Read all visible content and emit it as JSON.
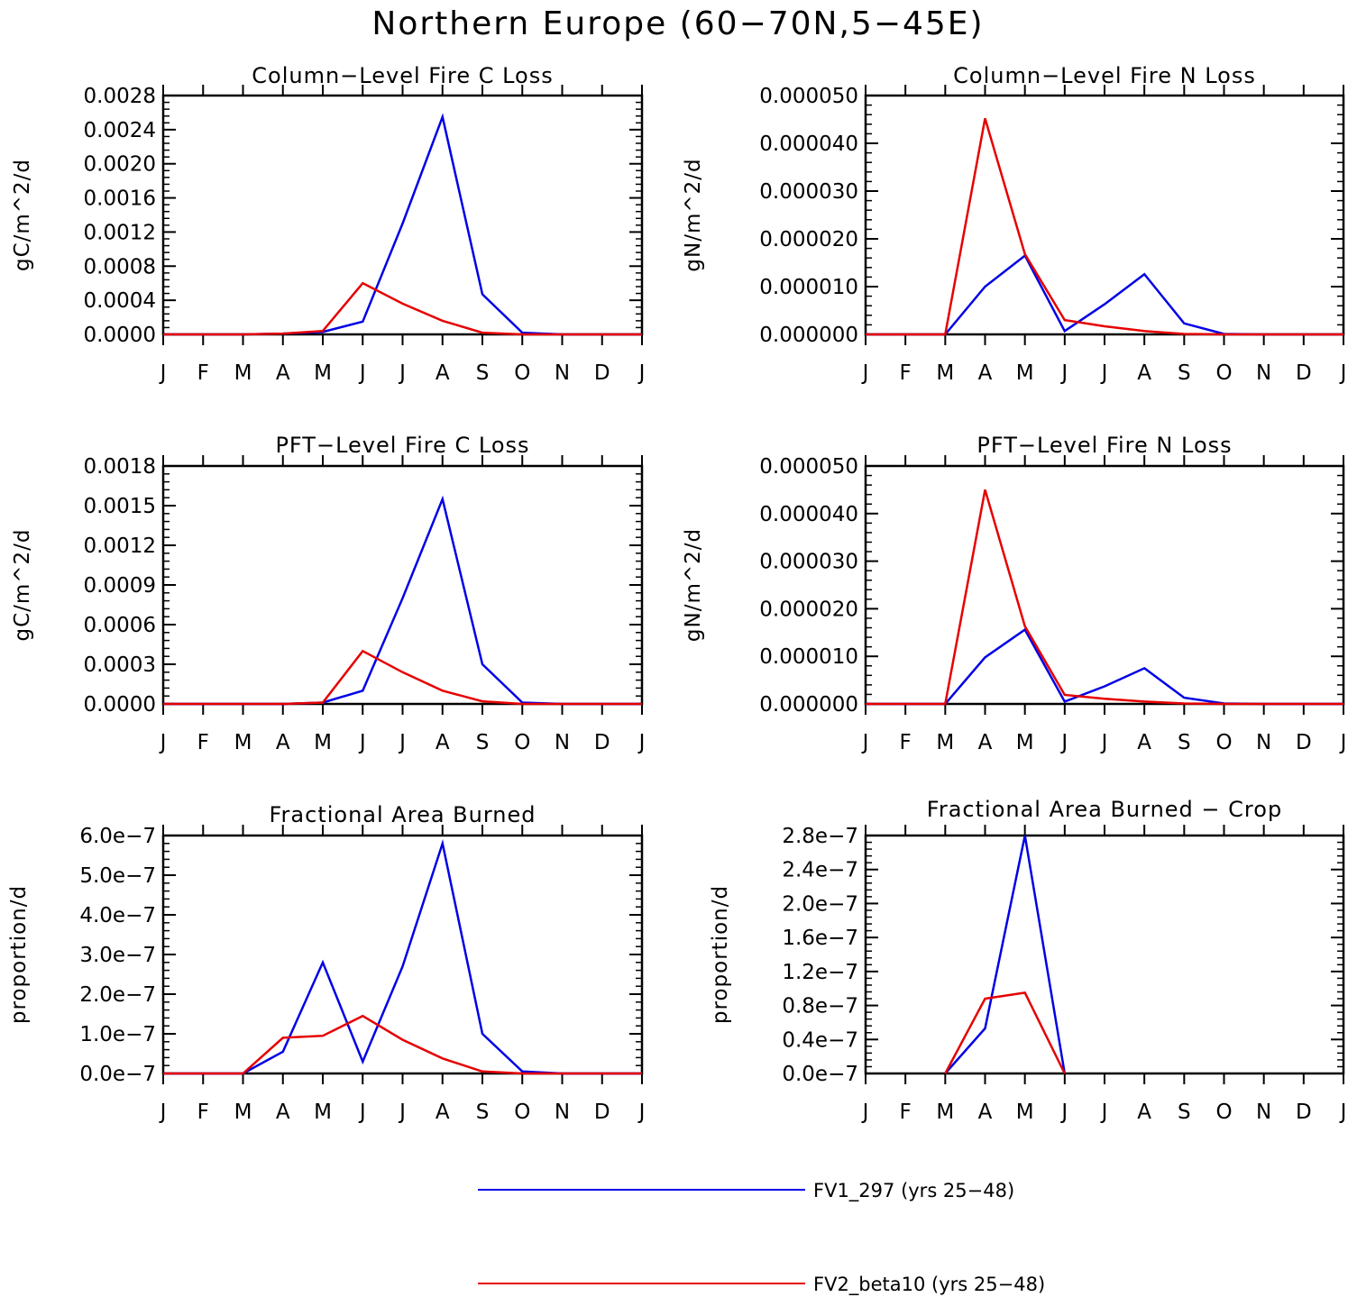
{
  "title": "Northern Europe (60−70N,5−45E)",
  "colors": {
    "series1": "#0000e6",
    "series2": "#e60000"
  },
  "legend": [
    {
      "label": "FV1_297 (yrs 25−48)"
    },
    {
      "label": "FV2_beta10 (yrs 25−48)"
    }
  ],
  "chart_data": [
    {
      "type": "line",
      "title": "Column−Level Fire C Loss",
      "ylabel": "gC/m^2/d",
      "xlabel": "",
      "categories": [
        "J",
        "F",
        "M",
        "A",
        "M",
        "J",
        "J",
        "A",
        "S",
        "O",
        "N",
        "D",
        "J"
      ],
      "ylim": [
        0,
        0.0028
      ],
      "yticks": [
        "0.0000",
        "0.0004",
        "0.0008",
        "0.0012",
        "0.0016",
        "0.0020",
        "0.0024",
        "0.0028"
      ],
      "series": [
        {
          "name": "FV1_297 (yrs 25−48)",
          "values": [
            0,
            0,
            0,
            1e-05,
            3e-05,
            0.00015,
            0.0013,
            0.00255,
            0.00047,
            2e-05,
            0,
            0,
            0
          ]
        },
        {
          "name": "FV2_beta10 (yrs 25−48)",
          "values": [
            0,
            0,
            0,
            1e-05,
            4e-05,
            0.0006,
            0.00036,
            0.00016,
            2e-05,
            0,
            0,
            0,
            0
          ]
        }
      ]
    },
    {
      "type": "line",
      "title": "Column−Level Fire N Loss",
      "ylabel": "gN/m^2/d",
      "xlabel": "",
      "categories": [
        "J",
        "F",
        "M",
        "A",
        "M",
        "J",
        "J",
        "A",
        "S",
        "O",
        "N",
        "D",
        "J"
      ],
      "ylim": [
        0,
        5e-05
      ],
      "yticks": [
        "0.000000",
        "0.000010",
        "0.000020",
        "0.000030",
        "0.000040",
        "0.000050"
      ],
      "series": [
        {
          "name": "FV1_297 (yrs 25−48)",
          "values": [
            0,
            0,
            0,
            1e-05,
            1.65e-05,
            7e-07,
            6.3e-06,
            1.26e-05,
            2.3e-06,
            1e-07,
            0,
            0,
            0
          ]
        },
        {
          "name": "FV2_beta10 (yrs 25−48)",
          "values": [
            0,
            0,
            0,
            4.52e-05,
            1.68e-05,
            3e-06,
            1.7e-06,
            7e-07,
            1e-07,
            0,
            0,
            0,
            0
          ]
        }
      ]
    },
    {
      "type": "line",
      "title": "PFT−Level Fire C Loss",
      "ylabel": "gC/m^2/d",
      "xlabel": "",
      "categories": [
        "J",
        "F",
        "M",
        "A",
        "M",
        "J",
        "J",
        "A",
        "S",
        "O",
        "N",
        "D",
        "J"
      ],
      "ylim": [
        0,
        0.0018
      ],
      "yticks": [
        "0.0000",
        "0.0003",
        "0.0006",
        "0.0009",
        "0.0012",
        "0.0015",
        "0.0018"
      ],
      "series": [
        {
          "name": "FV1_297 (yrs 25−48)",
          "values": [
            0,
            0,
            0,
            0,
            1e-05,
            0.0001,
            0.0008,
            0.00155,
            0.0003,
            1e-05,
            0,
            0,
            0
          ]
        },
        {
          "name": "FV2_beta10 (yrs 25−48)",
          "values": [
            0,
            0,
            0,
            0,
            1e-05,
            0.0004,
            0.00024,
            0.0001,
            2e-05,
            0,
            0,
            0,
            0
          ]
        }
      ]
    },
    {
      "type": "line",
      "title": "PFT−Level Fire N Loss",
      "ylabel": "gN/m^2/d",
      "xlabel": "",
      "categories": [
        "J",
        "F",
        "M",
        "A",
        "M",
        "J",
        "J",
        "A",
        "S",
        "O",
        "N",
        "D",
        "J"
      ],
      "ylim": [
        0,
        5e-05
      ],
      "yticks": [
        "0.000000",
        "0.000010",
        "0.000020",
        "0.000030",
        "0.000040",
        "0.000050"
      ],
      "series": [
        {
          "name": "FV1_297 (yrs 25−48)",
          "values": [
            0,
            0,
            0,
            9.8e-06,
            1.56e-05,
            5e-07,
            3.7e-06,
            7.5e-06,
            1.3e-06,
            1e-07,
            0,
            0,
            0
          ]
        },
        {
          "name": "FV2_beta10 (yrs 25−48)",
          "values": [
            0,
            0,
            0,
            4.5e-05,
            1.63e-05,
            1.9e-06,
            1.1e-06,
            5e-07,
            1e-07,
            0,
            0,
            0,
            0
          ]
        }
      ]
    },
    {
      "type": "line",
      "title": "Fractional Area Burned",
      "ylabel": "proportion/d",
      "xlabel": "",
      "categories": [
        "J",
        "F",
        "M",
        "A",
        "M",
        "J",
        "J",
        "A",
        "S",
        "O",
        "N",
        "D",
        "J"
      ],
      "ylim": [
        0,
        6e-07
      ],
      "yticks": [
        "0.0e−7",
        "1.0e−7",
        "2.0e−7",
        "3.0e−7",
        "4.0e−7",
        "5.0e−7",
        "6.0e−7"
      ],
      "series": [
        {
          "name": "FV1_297 (yrs 25−48)",
          "values": [
            0,
            0,
            0,
            5.5e-08,
            2.8e-07,
            3e-08,
            2.7e-07,
            5.8e-07,
            1e-07,
            5e-09,
            0,
            0,
            0
          ]
        },
        {
          "name": "FV2_beta10 (yrs 25−48)",
          "values": [
            0,
            0,
            0,
            9e-08,
            9.5e-08,
            1.45e-07,
            8.5e-08,
            3.8e-08,
            5e-09,
            0,
            0,
            0,
            0
          ]
        }
      ]
    },
    {
      "type": "line",
      "title": "Fractional Area Burned − Crop",
      "ylabel": "proportion/d",
      "xlabel": "",
      "categories": [
        "J",
        "F",
        "M",
        "A",
        "M",
        "J",
        "J",
        "A",
        "S",
        "O",
        "N",
        "D",
        "J"
      ],
      "ylim": [
        0,
        2.8e-07
      ],
      "yticks": [
        "0.0e−7",
        "0.4e−7",
        "0.8e−7",
        "1.2e−7",
        "1.6e−7",
        "2.0e−7",
        "2.4e−7",
        "2.8e−7"
      ],
      "series": [
        {
          "name": "FV1_297 (yrs 25−48)",
          "values": [
            null,
            null,
            0,
            5.3e-08,
            2.8e-07,
            0,
            null,
            null,
            null,
            null,
            null,
            null,
            null
          ]
        },
        {
          "name": "FV2_beta10 (yrs 25−48)",
          "values": [
            null,
            null,
            0,
            8.8e-08,
            9.5e-08,
            0,
            null,
            null,
            null,
            null,
            null,
            null,
            null
          ]
        }
      ]
    }
  ]
}
